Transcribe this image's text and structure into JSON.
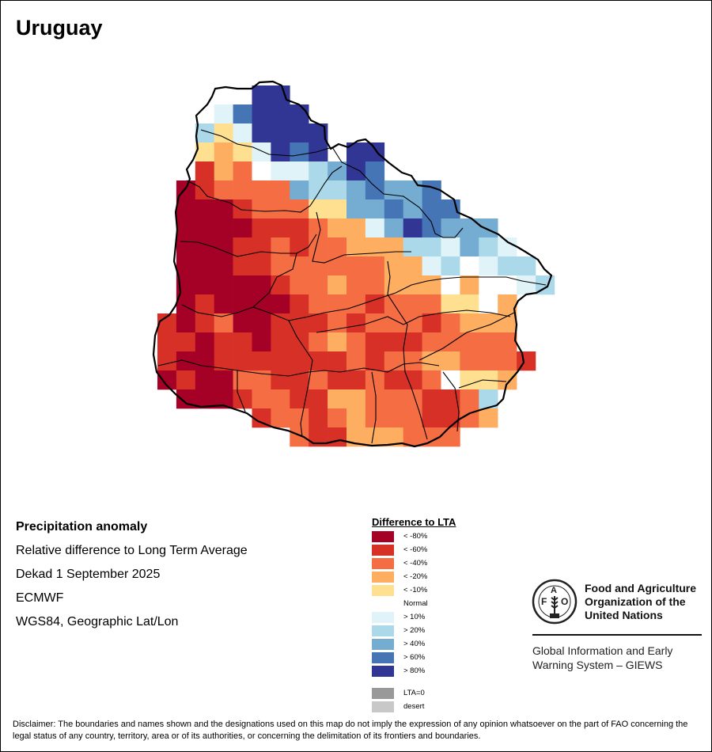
{
  "title": "Uruguay",
  "info": {
    "heading": "Precipitation anomaly",
    "subtitle": "Relative difference to Long Term Average",
    "period": "Dekad 1 September 2025",
    "source": "ECMWF",
    "projection": "WGS84, Geographic Lat/Lon"
  },
  "legend": {
    "title": "Difference to LTA",
    "items": [
      {
        "code": "A",
        "label": "< -80%",
        "color": "#a50026"
      },
      {
        "code": "B",
        "label": "< -60%",
        "color": "#d73027"
      },
      {
        "code": "C",
        "label": "< -40%",
        "color": "#f46d43"
      },
      {
        "code": "D",
        "label": "< -20%",
        "color": "#fdae61"
      },
      {
        "code": "E",
        "label": "< -10%",
        "color": "#fee090"
      },
      {
        "code": "N",
        "label": "Normal",
        "color": "#ffffff"
      },
      {
        "code": "F",
        "label": "> 10%",
        "color": "#e0f3f8"
      },
      {
        "code": "G",
        "label": "> 20%",
        "color": "#abd9e9"
      },
      {
        "code": "H",
        "label": "> 40%",
        "color": "#74add1"
      },
      {
        "code": "I",
        "label": "> 60%",
        "color": "#4575b4"
      },
      {
        "code": "J",
        "label": "> 80%",
        "color": "#313695"
      }
    ],
    "extra": [
      {
        "label": "LTA=0",
        "color": "#999999"
      },
      {
        "label": "desert",
        "color": "#c8c8c8"
      }
    ]
  },
  "anomaly_grid": [
    ".....JJ..............",
    "...FIJJJ.............",
    "..GEFJJJJ............",
    "..EDEFJIJ.JJ.........",
    "..BDCNFFGHJI.........",
    ".ABCCCCHGGHIHHI......",
    ".AAABCCCEEHHIHII.....",
    ".AAAABBBCDDFHJIHHH...",
    ".AAABBCBCCDDDGGFHGF..",
    ".AAABBCCCCCCDDFGNFGG.",
    ".AAAAABCCDCCDDDNDNNFG",
    ".ABAAAABCCCBCCCEEND..",
    "BABCAABBBCBCCCBCDDD..",
    "BBABBABBCDCBBBCCCCC..",
    "BAABBBBBBBCBCCDDCCCB.",
    "ABAACCBBCBBCBBCNEED..",
    ".AAABCCBBDDCCCBBCG...",
    ".....BCCBCDCCCBBCD...",
    ".......CBBDDDCCC....."
  ],
  "org": {
    "name_lines": [
      "Food and Agriculture",
      "Organization of the",
      "United Nations"
    ],
    "logo_letters": "FAO",
    "logo_motto": "FIAT PANIS",
    "program_lines": [
      "Global Information and Early",
      "Warning System – GIEWS"
    ]
  },
  "disclaimer": "Disclaimer: The boundaries and names shown and the designations used on this map do not imply the expression of any opinion whatsoever on the part of FAO concerning the legal status of any country, territory, area or of its authorities, or concerning the delimitation of its frontiers and boundaries."
}
